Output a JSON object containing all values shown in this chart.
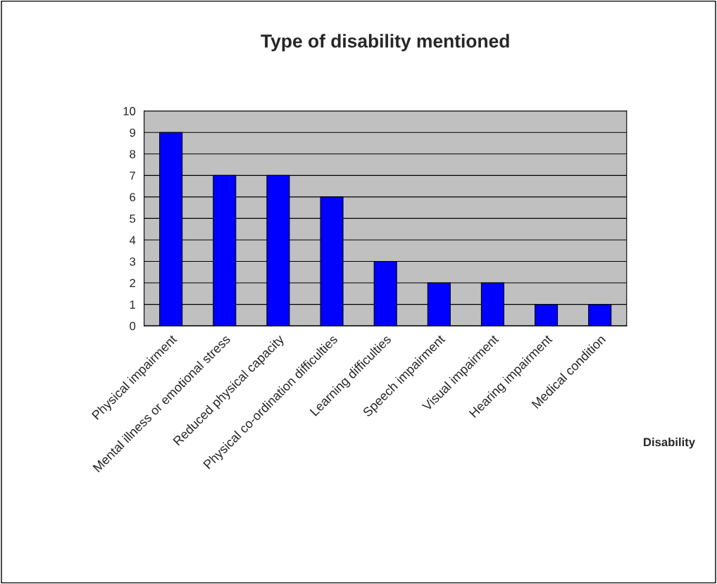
{
  "chart_data": {
    "type": "bar",
    "title": "Type of disability mentioned",
    "xlabel": "Disability",
    "categories": [
      "Physical impairment",
      "Mental illness or emotional stress",
      "Reduced physical capacity",
      "Physical co-ordination difficulties",
      "Learning difficulties",
      "Speech impairment",
      "Visual impairment",
      "Hearing impairment",
      "Medical condition"
    ],
    "values": [
      9,
      7,
      7,
      6,
      3,
      2,
      2,
      1,
      1
    ],
    "color": "#0000ff",
    "ylim": [
      0,
      10
    ],
    "yticks": [
      0,
      1,
      2,
      3,
      4,
      5,
      6,
      7,
      8,
      9,
      10
    ],
    "grid": "y",
    "legend": false
  }
}
